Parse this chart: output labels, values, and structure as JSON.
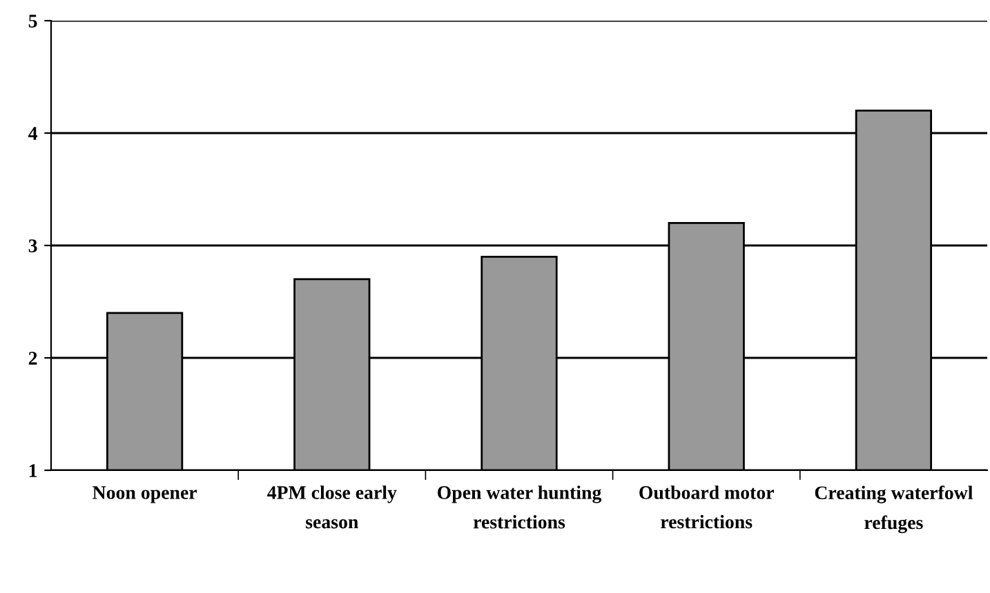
{
  "chart_data": {
    "type": "bar",
    "categories": [
      "Noon opener",
      "4PM close early season",
      "Open water hunting restrictions",
      "Outboard motor restrictions",
      "Creating waterfowl refuges"
    ],
    "values": [
      2.4,
      2.7,
      2.9,
      3.2,
      4.2
    ],
    "color": "#999999",
    "ylim": [
      1,
      5
    ],
    "yticks": [
      1,
      2,
      3,
      4,
      5
    ],
    "grid": "y"
  }
}
